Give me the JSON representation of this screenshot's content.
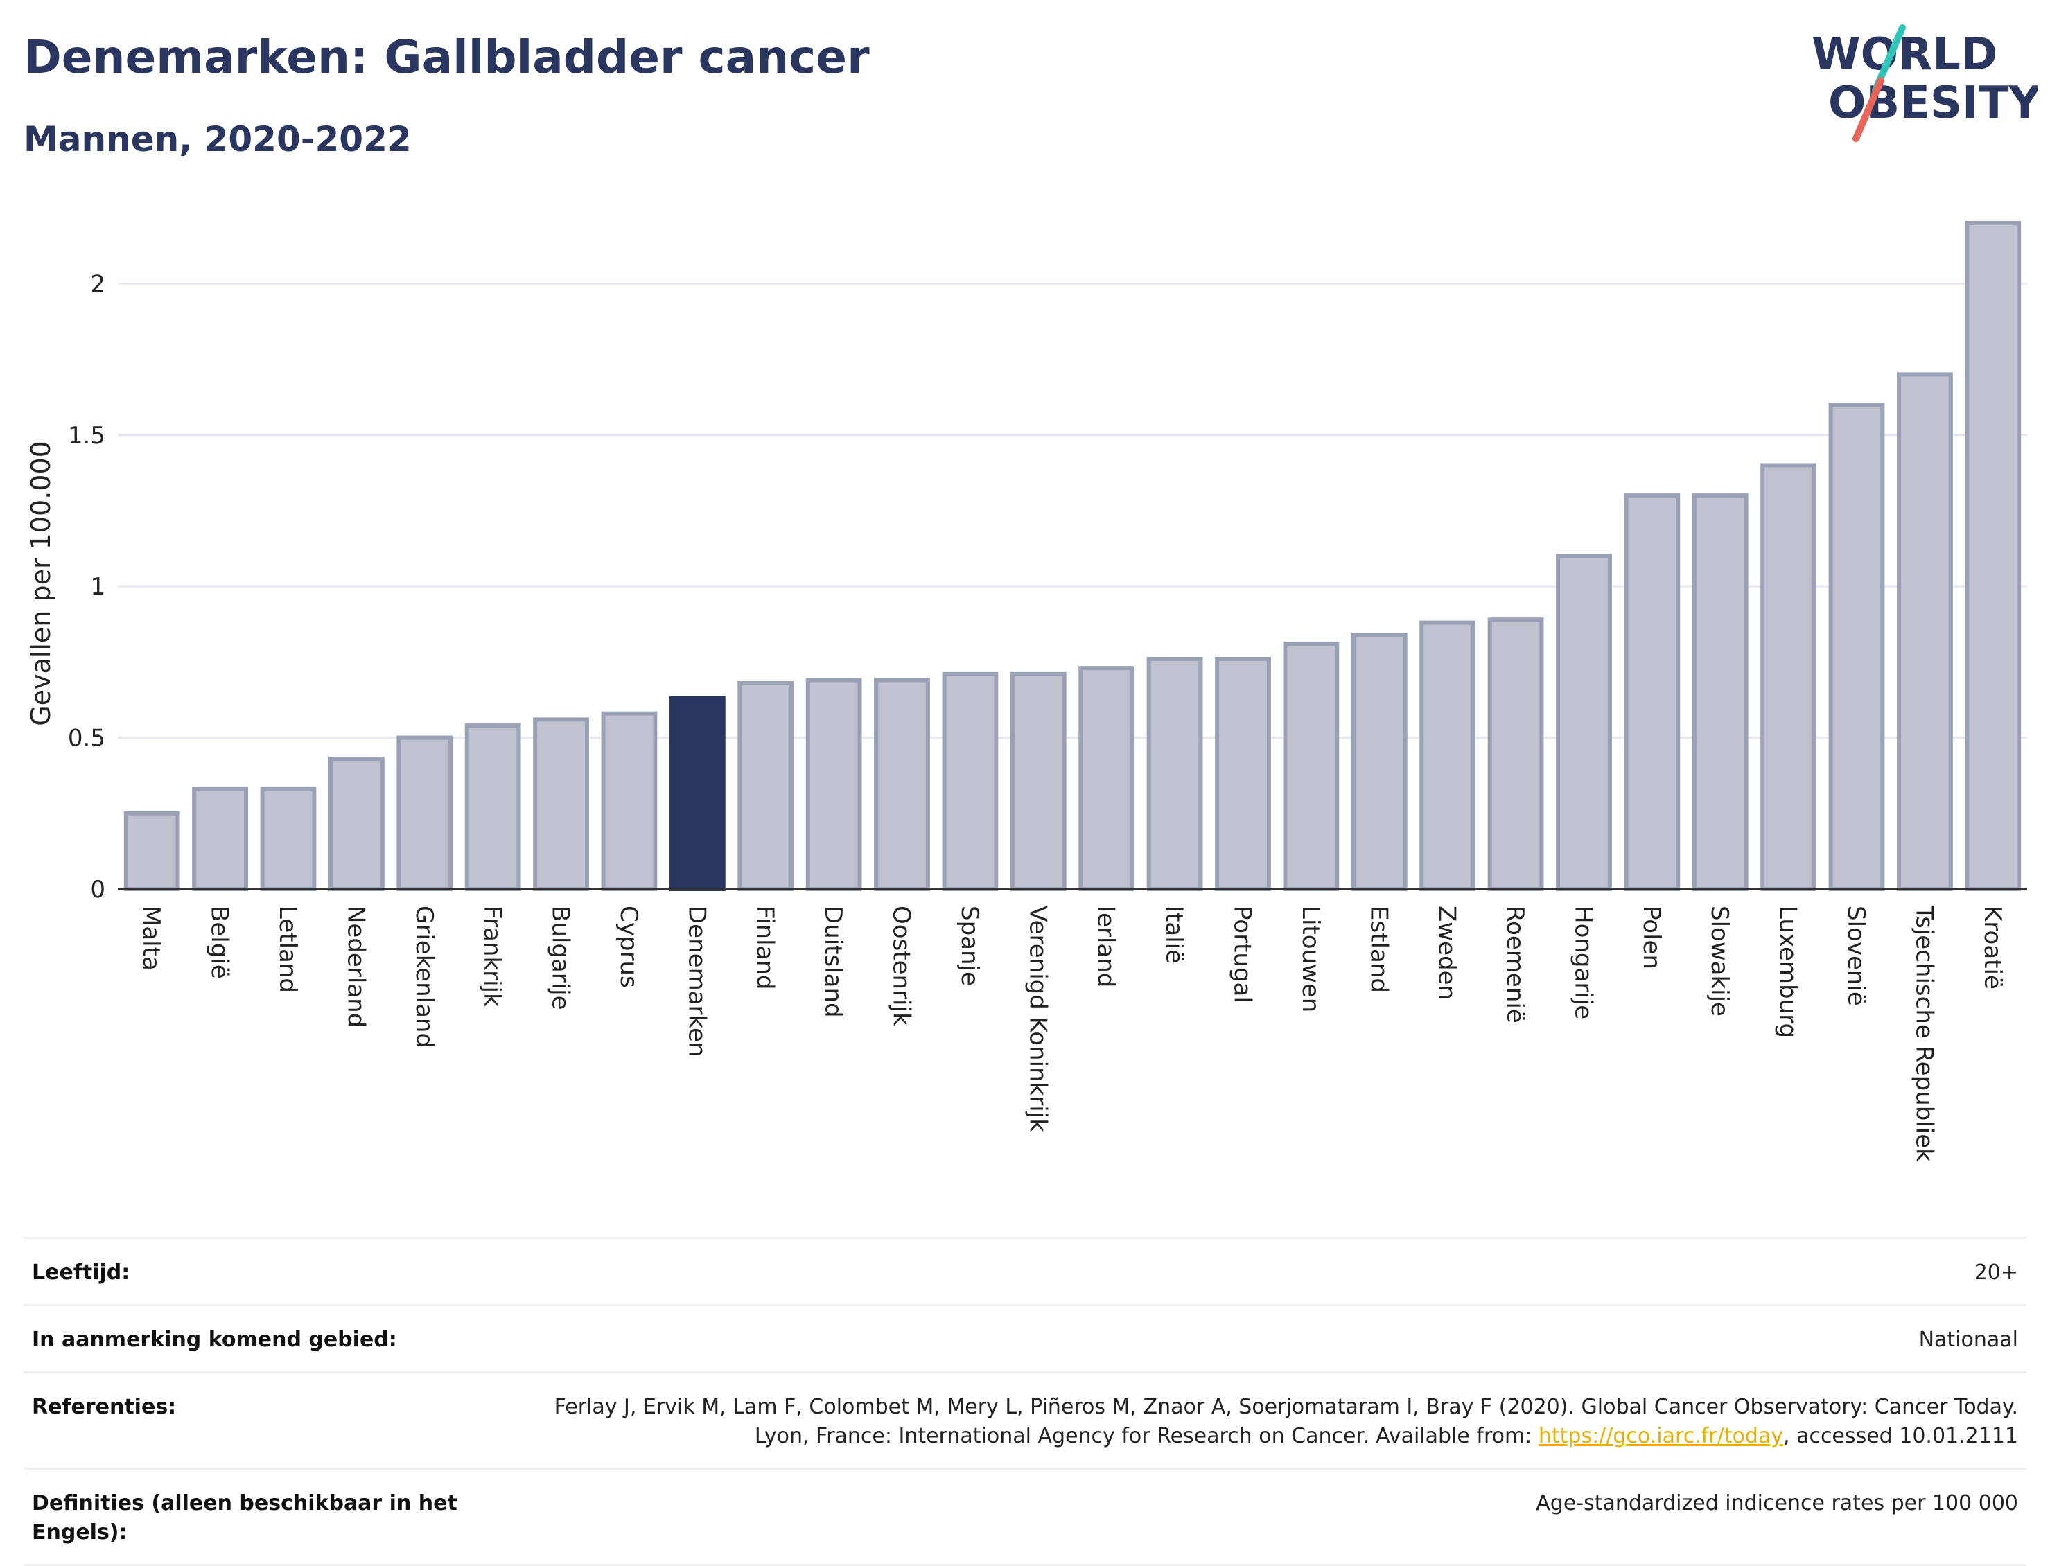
{
  "header": {
    "title": "Denemarken: Gallbladder cancer",
    "subtitle": "Mannen, 2020-2022"
  },
  "logo": {
    "line1": "WORLD",
    "line2": "OBESITY",
    "accent_colors": [
      "#2ec4b6",
      "#e8655a"
    ]
  },
  "colors": {
    "bar": "#c0c3cf",
    "bar_border": "#9aa0b5",
    "highlight": "#2a3560",
    "grid": "#e6e7ec"
  },
  "chart_data": {
    "type": "bar",
    "title": "Denemarken: Gallbladder cancer",
    "subtitle": "Mannen, 2020-2022",
    "ylabel": "Gevallen per 100.000",
    "xlabel": "",
    "ylim": [
      0,
      2.2
    ],
    "yticks": [
      0,
      0.5,
      1,
      1.5,
      2
    ],
    "ytick_labels": [
      "0",
      "0.5",
      "1",
      "1.5",
      "2"
    ],
    "grid": true,
    "highlight": "Denemarken",
    "categories": [
      "Malta",
      "België",
      "Letland",
      "Nederland",
      "Griekenland",
      "Frankrijk",
      "Bulgarije",
      "Cyprus",
      "Denemarken",
      "Finland",
      "Duitsland",
      "Oostenrijk",
      "Spanje",
      "Verenigd Koninkrijk",
      "Ierland",
      "Italië",
      "Portugal",
      "Litouwen",
      "Estland",
      "Zweden",
      "Roemenië",
      "Hongarije",
      "Polen",
      "Slowakije",
      "Luxemburg",
      "Slovenië",
      "Tsjechische Republiek",
      "Kroatië"
    ],
    "values": [
      0.25,
      0.33,
      0.33,
      0.43,
      0.5,
      0.54,
      0.56,
      0.58,
      0.63,
      0.68,
      0.69,
      0.69,
      0.71,
      0.71,
      0.73,
      0.76,
      0.76,
      0.81,
      0.84,
      0.88,
      0.89,
      1.1,
      1.3,
      1.3,
      1.4,
      1.6,
      1.7,
      2.2
    ]
  },
  "info": {
    "age": {
      "label": "Leeftijd:",
      "value": "20+"
    },
    "area": {
      "label": "In aanmerking komend gebied:",
      "value": "Nationaal"
    },
    "refs": {
      "label": "Referenties:",
      "text_before": "Ferlay J, Ervik M, Lam F, Colombet M, Mery L, Piñeros M, Znaor A, Soerjomataram I, Bray F (2020). Global Cancer Observatory: Cancer Today. Lyon, France: International Agency for Research on Cancer. Available from: ",
      "link": "https://gco.iarc.fr/today",
      "text_after": ", accessed 10.01.2111"
    },
    "defs": {
      "label": "Definities (alleen beschikbaar in het Engels):",
      "value": "Age-standardized indicence rates per 100 000"
    }
  }
}
